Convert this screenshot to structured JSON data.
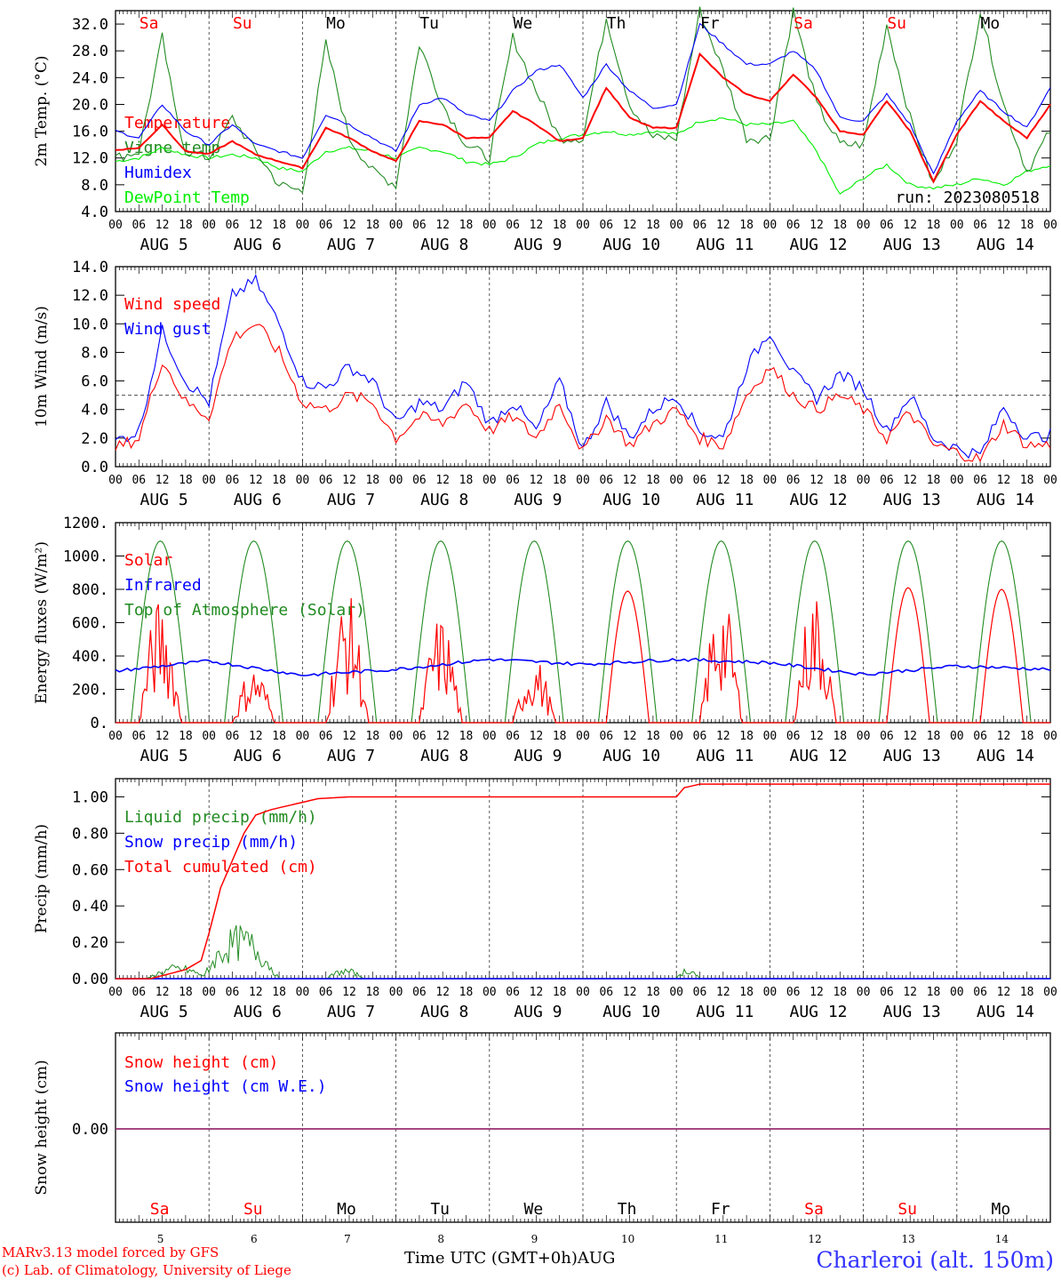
{
  "chart_data": [
    {
      "type": "line",
      "ylabel": "2m Temp. (°C)",
      "yticks": [
        "4.0",
        "8.0",
        "12.0",
        "16.0",
        "20.0",
        "24.0",
        "28.0",
        "32.0"
      ],
      "ylim": [
        4,
        34
      ],
      "legend": [
        {
          "label": "Temperature",
          "color": "#ff0000"
        },
        {
          "label": "Vigne temp",
          "color": "#228b22"
        },
        {
          "label": "Humidex",
          "color": "#0000ff"
        },
        {
          "label": "DewPoint Temp",
          "color": "#00ee00"
        }
      ],
      "annotation": "run: 2023080518",
      "x_hours": [
        0,
        6,
        12,
        15,
        18,
        24,
        30,
        36,
        42,
        48,
        54,
        60,
        66,
        72,
        78,
        84,
        90,
        96,
        102,
        108,
        114,
        120,
        126,
        132,
        138,
        144,
        150,
        156,
        162,
        168,
        174,
        180,
        186,
        192,
        198,
        204,
        210,
        216,
        222,
        228,
        234,
        240
      ],
      "series": [
        {
          "name": "Temperature",
          "color": "#ff0000",
          "values": [
            13.2,
            13.5,
            17.0,
            15.0,
            13.0,
            12.6,
            14.5,
            12.5,
            11.5,
            10.5,
            16.5,
            15.0,
            13.0,
            11.5,
            17.5,
            17.0,
            15.0,
            15.0,
            19.0,
            17.0,
            14.5,
            15.0,
            22.5,
            18.0,
            16.5,
            16.5,
            27.5,
            24.0,
            21.5,
            20.5,
            24.5,
            21.0,
            16.0,
            15.5,
            20.5,
            16.0,
            8.5,
            15.5,
            20.5,
            17.5,
            15.0,
            20.0
          ]
        },
        {
          "name": "Vigne temp",
          "color": "#228b22",
          "values": [
            12.0,
            13.0,
            30.0,
            20.0,
            13.0,
            12.0,
            18.0,
            13.0,
            8.0,
            7.0,
            29.0,
            15.0,
            10.0,
            8.0,
            29.0,
            20.0,
            14.0,
            12.0,
            30.0,
            22.0,
            15.0,
            15.0,
            33.0,
            20.0,
            15.0,
            15.0,
            34.0,
            25.0,
            15.0,
            15.0,
            34.0,
            20.0,
            14.0,
            14.0,
            32.0,
            18.0,
            8.0,
            15.0,
            34.0,
            20.0,
            10.0,
            16.0
          ]
        },
        {
          "name": "Humidex",
          "color": "#0000ff",
          "values": [
            16.0,
            15.0,
            20.0,
            18.0,
            16.0,
            14.0,
            17.0,
            14.0,
            13.0,
            12.0,
            18.5,
            17.0,
            15.0,
            13.0,
            20.0,
            21.0,
            18.5,
            17.5,
            22.0,
            25.0,
            26.0,
            21.0,
            26.0,
            22.0,
            19.5,
            20.0,
            32.0,
            29.0,
            26.0,
            26.0,
            28.0,
            25.0,
            18.0,
            17.5,
            21.5,
            17.0,
            9.5,
            17.5,
            22.0,
            19.0,
            16.5,
            22.5
          ]
        },
        {
          "name": "DewPoint Temp",
          "color": "#00ee00",
          "values": [
            11.5,
            12.0,
            13.5,
            13.0,
            12.5,
            12.0,
            12.5,
            12.0,
            10.5,
            10.0,
            13.0,
            13.5,
            13.0,
            12.0,
            13.5,
            13.0,
            11.5,
            11.0,
            12.0,
            14.0,
            15.0,
            15.5,
            16.0,
            15.5,
            16.0,
            15.5,
            17.5,
            18.0,
            17.0,
            17.0,
            17.5,
            13.0,
            6.5,
            9.0,
            11.0,
            8.0,
            7.5,
            8.0,
            9.0,
            8.0,
            10.0,
            11.0
          ]
        }
      ]
    },
    {
      "type": "line",
      "ylabel": "10m Wind (m/s)",
      "yticks": [
        "0.0",
        "2.0",
        "4.0",
        "6.0",
        "8.0",
        "10.0",
        "12.0",
        "14.0"
      ],
      "ylim": [
        0,
        14
      ],
      "ref_line": 5,
      "legend": [
        {
          "label": "Wind speed",
          "color": "#ff0000"
        },
        {
          "label": "Wind gust",
          "color": "#0000ff"
        }
      ],
      "x_hours": [
        0,
        6,
        12,
        18,
        24,
        30,
        36,
        42,
        48,
        54,
        60,
        66,
        72,
        78,
        84,
        90,
        96,
        102,
        108,
        114,
        120,
        126,
        132,
        138,
        144,
        150,
        156,
        162,
        168,
        174,
        180,
        186,
        192,
        198,
        204,
        210,
        216,
        222,
        228,
        234,
        240
      ],
      "series": [
        {
          "name": "Wind speed",
          "color": "#ff0000",
          "values": [
            1.3,
            2.0,
            7.5,
            4.5,
            3.5,
            9.0,
            10.0,
            8.0,
            4.5,
            4.0,
            5.0,
            4.5,
            2.0,
            3.5,
            3.0,
            4.5,
            2.5,
            3.5,
            2.0,
            4.5,
            1.0,
            3.5,
            1.5,
            3.0,
            4.0,
            2.0,
            1.5,
            5.0,
            7.0,
            5.0,
            4.0,
            5.0,
            4.0,
            2.0,
            3.8,
            1.5,
            1.0,
            0.5,
            3.0,
            1.5,
            1.5
          ]
        },
        {
          "name": "Wind gust",
          "color": "#0000ff",
          "values": [
            1.8,
            2.5,
            9.5,
            6.0,
            4.5,
            12.0,
            13.0,
            10.0,
            6.0,
            5.5,
            7.0,
            6.0,
            3.0,
            4.5,
            4.0,
            6.0,
            3.0,
            4.5,
            2.5,
            6.0,
            1.2,
            4.5,
            2.0,
            4.0,
            5.0,
            2.5,
            2.0,
            7.0,
            9.5,
            6.5,
            4.8,
            6.5,
            5.5,
            2.5,
            5.0,
            2.0,
            1.3,
            0.8,
            4.2,
            2.0,
            2.2
          ]
        }
      ]
    },
    {
      "type": "line",
      "ylabel": "Energy fluxes (W/m²)",
      "yticks": [
        "0.",
        "200.",
        "400.",
        "600.",
        "800.",
        "1000.",
        "1200."
      ],
      "ylim": [
        0,
        1200
      ],
      "legend": [
        {
          "label": "Solar",
          "color": "#ff0000"
        },
        {
          "label": "Infrared",
          "color": "#0000ff"
        },
        {
          "label": "Top of Atmosphere (Solar)",
          "color": "#228b22"
        }
      ],
      "toa_peak": 1090,
      "solar_peaks": [
        750,
        350,
        780,
        650,
        400,
        790,
        780,
        800,
        810,
        800
      ],
      "infrared_levels": [
        310,
        370,
        285,
        320,
        380,
        350,
        380,
        360,
        290,
        340,
        320
      ],
      "daylight_hours": [
        4,
        19
      ]
    },
    {
      "type": "line",
      "ylabel": "Precip (mm/h)",
      "yticks": [
        "0.00",
        "0.20",
        "0.40",
        "0.60",
        "0.80",
        "1.00"
      ],
      "ylim": [
        0,
        1.1
      ],
      "legend": [
        {
          "label": "Liquid precip (mm/h)",
          "color": "#228b22"
        },
        {
          "label": "Snow precip (mm/h)",
          "color": "#0000ff"
        },
        {
          "label": "Total cumulated (cm)",
          "color": "#ff0000"
        }
      ],
      "x_hours": [
        0,
        9,
        18,
        22,
        24,
        27,
        30,
        33,
        36,
        40,
        44,
        48,
        52,
        60,
        72,
        96,
        120,
        144,
        146,
        150,
        156,
        168,
        240
      ],
      "series": [
        {
          "name": "Total cumulated",
          "color": "#ff0000",
          "values": [
            0.0,
            0.0,
            0.05,
            0.1,
            0.25,
            0.5,
            0.65,
            0.8,
            0.9,
            0.93,
            0.95,
            0.97,
            0.99,
            1.0,
            1.0,
            1.0,
            1.0,
            1.0,
            1.05,
            1.07,
            1.07,
            1.07,
            1.07
          ]
        }
      ],
      "liquid_bursts": [
        {
          "start": 8,
          "end": 24,
          "peak": 0.08
        },
        {
          "start": 22,
          "end": 42,
          "peak": 0.3
        },
        {
          "start": 54,
          "end": 64,
          "peak": 0.06
        },
        {
          "start": 144,
          "end": 150,
          "peak": 0.07
        }
      ]
    },
    {
      "type": "line",
      "ylabel": "Snow height (cm)",
      "yticks": [
        "0.00"
      ],
      "legend": [
        {
          "label": "Snow height (cm)",
          "color": "#ff0000"
        },
        {
          "label": "Snow height (cm W.E.)",
          "color": "#0000ff"
        }
      ],
      "series": [
        {
          "name": "Snow height (cm)",
          "color": "#ff0000",
          "values": [
            0,
            0
          ]
        },
        {
          "name": "Snow height (cm W.E.)",
          "color": "#0000ff",
          "values": [
            0,
            0
          ]
        }
      ]
    }
  ],
  "day_names": [
    {
      "label": "Sa",
      "color": "#ff0000"
    },
    {
      "label": "Su",
      "color": "#ff0000"
    },
    {
      "label": "Mo",
      "color": "#000000"
    },
    {
      "label": "Tu",
      "color": "#000000"
    },
    {
      "label": "We",
      "color": "#000000"
    },
    {
      "label": "Th",
      "color": "#000000"
    },
    {
      "label": "Fr",
      "color": "#000000"
    },
    {
      "label": "Sa",
      "color": "#ff0000"
    },
    {
      "label": "Su",
      "color": "#ff0000"
    },
    {
      "label": "Mo",
      "color": "#000000"
    }
  ],
  "date_labels": [
    "AUG  5",
    "AUG  6",
    "AUG  7",
    "AUG  8",
    "AUG  9",
    "AUG 10",
    "AUG 11",
    "AUG 12",
    "AUG 13",
    "AUG 14"
  ],
  "day_numbers": [
    "5",
    "6",
    "7",
    "8",
    "9",
    "10",
    "11",
    "12",
    "13",
    "14"
  ],
  "hour_ticks": [
    "00",
    "06",
    "12",
    "18"
  ],
  "end_tick": "00",
  "footer": {
    "model": "MARv3.13 model forced by GFS",
    "credit": "(c) Lab. of Climatology, University of Liege",
    "xlabel": "Time UTC (GMT+0h)",
    "month": "AUG",
    "station": "Charleroi (alt. 150m)"
  }
}
